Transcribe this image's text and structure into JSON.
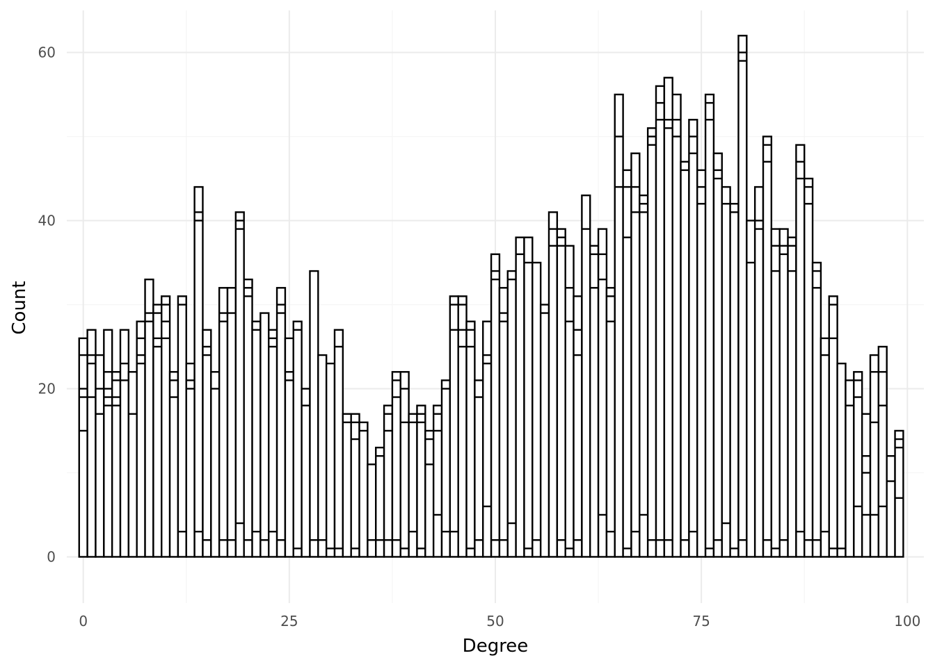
{
  "chart_data": {
    "type": "bar",
    "subtype": "stacked-histogram",
    "title": "",
    "xlabel": "Degree",
    "ylabel": "Count",
    "xlim": [
      -2,
      102
    ],
    "ylim": [
      -5.5,
      65
    ],
    "x_ticks": [
      0,
      25,
      50,
      75,
      100
    ],
    "y_ticks": [
      0,
      20,
      40,
      60
    ],
    "grid": true,
    "bar_fill": "#ffffff",
    "bar_stroke": "#000000",
    "bins": [
      {
        "x": 0,
        "total": 26,
        "cuts": [
          15,
          19,
          20,
          24
        ]
      },
      {
        "x": 1,
        "total": 27,
        "cuts": [
          19,
          23,
          24
        ]
      },
      {
        "x": 2,
        "total": 24,
        "cuts": [
          17,
          20
        ]
      },
      {
        "x": 3,
        "total": 27,
        "cuts": [
          18,
          19,
          20,
          22
        ]
      },
      {
        "x": 4,
        "total": 22,
        "cuts": [
          18,
          19,
          21
        ]
      },
      {
        "x": 5,
        "total": 27,
        "cuts": [
          21,
          23
        ]
      },
      {
        "x": 6,
        "total": 22,
        "cuts": [
          17
        ]
      },
      {
        "x": 7,
        "total": 28,
        "cuts": [
          23,
          24,
          26
        ]
      },
      {
        "x": 8,
        "total": 33,
        "cuts": [
          28,
          29
        ]
      },
      {
        "x": 9,
        "total": 30,
        "cuts": [
          25,
          26,
          29
        ]
      },
      {
        "x": 10,
        "total": 31,
        "cuts": [
          26,
          28,
          30
        ]
      },
      {
        "x": 11,
        "total": 22,
        "cuts": [
          19,
          21
        ]
      },
      {
        "x": 12,
        "total": 31,
        "cuts": [
          3,
          30
        ]
      },
      {
        "x": 13,
        "total": 23,
        "cuts": [
          20,
          21
        ]
      },
      {
        "x": 14,
        "total": 44,
        "cuts": [
          3,
          40,
          41
        ]
      },
      {
        "x": 15,
        "total": 27,
        "cuts": [
          2,
          24,
          25
        ]
      },
      {
        "x": 16,
        "total": 22,
        "cuts": [
          20
        ]
      },
      {
        "x": 17,
        "total": 32,
        "cuts": [
          2,
          28,
          29
        ]
      },
      {
        "x": 18,
        "total": 32,
        "cuts": [
          2,
          29
        ]
      },
      {
        "x": 19,
        "total": 41,
        "cuts": [
          4,
          39,
          40
        ]
      },
      {
        "x": 20,
        "total": 33,
        "cuts": [
          2,
          31,
          32
        ]
      },
      {
        "x": 21,
        "total": 28,
        "cuts": [
          3,
          27
        ]
      },
      {
        "x": 22,
        "total": 29,
        "cuts": [
          2
        ]
      },
      {
        "x": 23,
        "total": 27,
        "cuts": [
          3,
          25,
          26
        ]
      },
      {
        "x": 24,
        "total": 32,
        "cuts": [
          2,
          29,
          30
        ]
      },
      {
        "x": 25,
        "total": 26,
        "cuts": [
          21,
          22
        ]
      },
      {
        "x": 26,
        "total": 28,
        "cuts": [
          1,
          27
        ]
      },
      {
        "x": 27,
        "total": 20,
        "cuts": [
          18
        ]
      },
      {
        "x": 28,
        "total": 34,
        "cuts": [
          2
        ]
      },
      {
        "x": 29,
        "total": 24,
        "cuts": [
          2
        ]
      },
      {
        "x": 30,
        "total": 23,
        "cuts": [
          1
        ]
      },
      {
        "x": 31,
        "total": 27,
        "cuts": [
          1,
          25
        ]
      },
      {
        "x": 32,
        "total": 17,
        "cuts": [
          16
        ]
      },
      {
        "x": 33,
        "total": 17,
        "cuts": [
          1,
          14,
          16
        ]
      },
      {
        "x": 34,
        "total": 16,
        "cuts": [
          15
        ]
      },
      {
        "x": 35,
        "total": 11,
        "cuts": [
          2
        ]
      },
      {
        "x": 36,
        "total": 13,
        "cuts": [
          2,
          12
        ]
      },
      {
        "x": 37,
        "total": 18,
        "cuts": [
          2,
          15,
          17
        ]
      },
      {
        "x": 38,
        "total": 22,
        "cuts": [
          2,
          19,
          21
        ]
      },
      {
        "x": 39,
        "total": 22,
        "cuts": [
          1,
          16,
          20
        ]
      },
      {
        "x": 40,
        "total": 17,
        "cuts": [
          3,
          16
        ]
      },
      {
        "x": 41,
        "total": 18,
        "cuts": [
          1,
          16,
          17
        ]
      },
      {
        "x": 42,
        "total": 15,
        "cuts": [
          11,
          14
        ]
      },
      {
        "x": 43,
        "total": 18,
        "cuts": [
          5,
          15,
          17
        ]
      },
      {
        "x": 44,
        "total": 21,
        "cuts": [
          3,
          20
        ]
      },
      {
        "x": 45,
        "total": 31,
        "cuts": [
          3,
          27,
          30
        ]
      },
      {
        "x": 46,
        "total": 31,
        "cuts": [
          25,
          27,
          30
        ]
      },
      {
        "x": 47,
        "total": 28,
        "cuts": [
          1,
          25,
          27
        ]
      },
      {
        "x": 48,
        "total": 21,
        "cuts": [
          2,
          19
        ]
      },
      {
        "x": 49,
        "total": 28,
        "cuts": [
          6,
          23,
          24
        ]
      },
      {
        "x": 50,
        "total": 36,
        "cuts": [
          2,
          33,
          34
        ]
      },
      {
        "x": 51,
        "total": 32,
        "cuts": [
          2,
          28,
          29
        ]
      },
      {
        "x": 52,
        "total": 34,
        "cuts": [
          4,
          33
        ]
      },
      {
        "x": 53,
        "total": 38,
        "cuts": [
          36
        ]
      },
      {
        "x": 54,
        "total": 38,
        "cuts": [
          1,
          35
        ]
      },
      {
        "x": 55,
        "total": 35,
        "cuts": [
          2
        ]
      },
      {
        "x": 56,
        "total": 30,
        "cuts": [
          29
        ]
      },
      {
        "x": 57,
        "total": 41,
        "cuts": [
          37,
          39
        ]
      },
      {
        "x": 58,
        "total": 39,
        "cuts": [
          2,
          37,
          38
        ]
      },
      {
        "x": 59,
        "total": 37,
        "cuts": [
          1,
          28,
          32
        ]
      },
      {
        "x": 60,
        "total": 31,
        "cuts": [
          2,
          24,
          27
        ]
      },
      {
        "x": 61,
        "total": 43,
        "cuts": [
          39
        ]
      },
      {
        "x": 62,
        "total": 37,
        "cuts": [
          32,
          36
        ]
      },
      {
        "x": 63,
        "total": 39,
        "cuts": [
          5,
          33,
          36
        ]
      },
      {
        "x": 64,
        "total": 32,
        "cuts": [
          3,
          28,
          31
        ]
      },
      {
        "x": 65,
        "total": 55,
        "cuts": [
          44,
          50
        ]
      },
      {
        "x": 66,
        "total": 46,
        "cuts": [
          1,
          38,
          44
        ]
      },
      {
        "x": 67,
        "total": 48,
        "cuts": [
          3,
          41,
          44
        ]
      },
      {
        "x": 68,
        "total": 43,
        "cuts": [
          5,
          41,
          42
        ]
      },
      {
        "x": 69,
        "total": 51,
        "cuts": [
          2,
          49,
          50
        ]
      },
      {
        "x": 70,
        "total": 56,
        "cuts": [
          2,
          52,
          54
        ]
      },
      {
        "x": 71,
        "total": 57,
        "cuts": [
          2,
          51,
          52
        ]
      },
      {
        "x": 72,
        "total": 55,
        "cuts": [
          50,
          52
        ]
      },
      {
        "x": 73,
        "total": 47,
        "cuts": [
          2,
          46
        ]
      },
      {
        "x": 74,
        "total": 52,
        "cuts": [
          3,
          48,
          50
        ]
      },
      {
        "x": 75,
        "total": 46,
        "cuts": [
          42,
          44
        ]
      },
      {
        "x": 76,
        "total": 55,
        "cuts": [
          1,
          52,
          54
        ]
      },
      {
        "x": 77,
        "total": 48,
        "cuts": [
          2,
          45,
          46
        ]
      },
      {
        "x": 78,
        "total": 44,
        "cuts": [
          4,
          42
        ]
      },
      {
        "x": 79,
        "total": 42,
        "cuts": [
          1,
          41
        ]
      },
      {
        "x": 80,
        "total": 62,
        "cuts": [
          2,
          59,
          60
        ]
      },
      {
        "x": 81,
        "total": 40,
        "cuts": [
          35
        ]
      },
      {
        "x": 82,
        "total": 44,
        "cuts": [
          39,
          40
        ]
      },
      {
        "x": 83,
        "total": 50,
        "cuts": [
          2,
          47,
          49
        ]
      },
      {
        "x": 84,
        "total": 39,
        "cuts": [
          1,
          34,
          37
        ]
      },
      {
        "x": 85,
        "total": 39,
        "cuts": [
          2,
          36,
          37
        ]
      },
      {
        "x": 86,
        "total": 38,
        "cuts": [
          34,
          37
        ]
      },
      {
        "x": 87,
        "total": 49,
        "cuts": [
          3,
          45,
          47
        ]
      },
      {
        "x": 88,
        "total": 45,
        "cuts": [
          2,
          42,
          44
        ]
      },
      {
        "x": 89,
        "total": 35,
        "cuts": [
          2,
          32,
          34
        ]
      },
      {
        "x": 90,
        "total": 26,
        "cuts": [
          3,
          24
        ]
      },
      {
        "x": 91,
        "total": 31,
        "cuts": [
          1,
          26,
          30
        ]
      },
      {
        "x": 92,
        "total": 23,
        "cuts": [
          1
        ]
      },
      {
        "x": 93,
        "total": 21,
        "cuts": [
          18
        ]
      },
      {
        "x": 94,
        "total": 22,
        "cuts": [
          6,
          19,
          21
        ]
      },
      {
        "x": 95,
        "total": 17,
        "cuts": [
          5,
          10,
          12
        ]
      },
      {
        "x": 96,
        "total": 24,
        "cuts": [
          5,
          16,
          22
        ]
      },
      {
        "x": 97,
        "total": 25,
        "cuts": [
          6,
          18,
          22
        ]
      },
      {
        "x": 98,
        "total": 12,
        "cuts": [
          9
        ]
      },
      {
        "x": 99,
        "total": 15,
        "cuts": [
          7,
          13,
          14
        ]
      }
    ]
  }
}
